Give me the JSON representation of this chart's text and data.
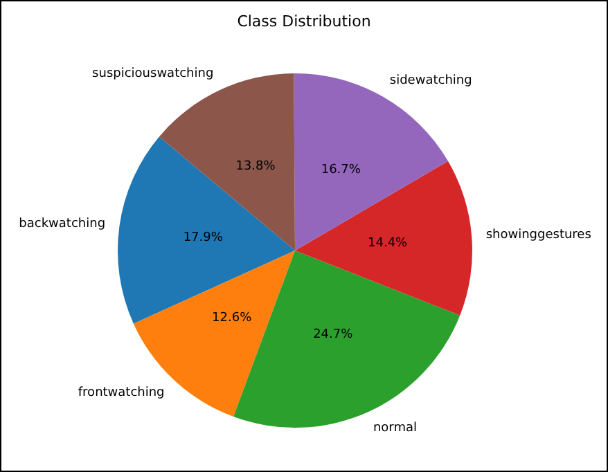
{
  "chart_data": {
    "type": "pie",
    "title": "Class Distribution",
    "categories": [
      "backwatching",
      "frontwatching",
      "normal",
      "showinggestures",
      "sidewatching",
      "suspiciouswatching"
    ],
    "values": [
      17.9,
      12.6,
      24.7,
      14.4,
      16.7,
      13.8
    ],
    "value_labels": [
      "17.9%",
      "12.6%",
      "24.7%",
      "14.4%",
      "16.7%",
      "13.8%"
    ],
    "colors": [
      "#1f77b4",
      "#ff7f0e",
      "#2ca02c",
      "#d62728",
      "#9467bd",
      "#8c564b"
    ],
    "legend": false
  }
}
